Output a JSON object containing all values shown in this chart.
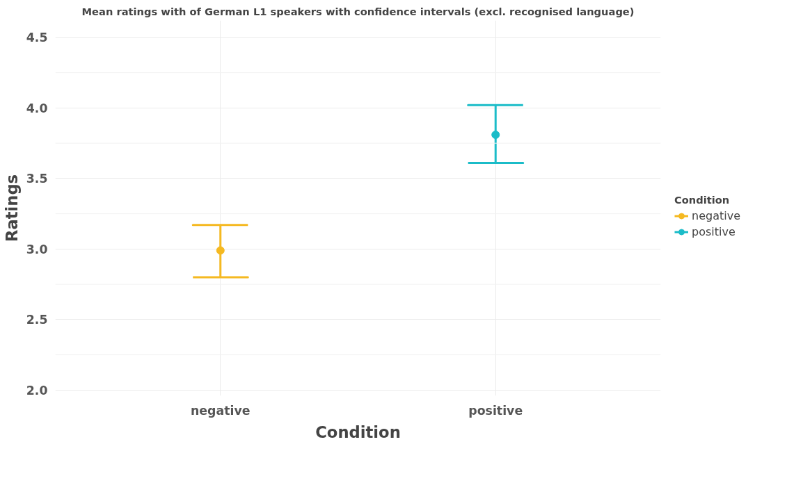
{
  "chart_data": {
    "type": "scatter",
    "title": "Mean ratings with of German L1 speakers with confidence intervals (excl. recognised language)",
    "xlabel": "Condition",
    "ylabel": "Ratings",
    "legend_title": "Condition",
    "categories": [
      "negative",
      "positive"
    ],
    "series": [
      {
        "name": "negative",
        "color": "#f5b921",
        "values": [
          2.99,
          null
        ],
        "errors": [
          [
            2.8,
            3.17
          ],
          null
        ]
      },
      {
        "name": "positive",
        "color": "#1bbcc8",
        "values": [
          null,
          3.81
        ],
        "errors": [
          null,
          [
            3.61,
            4.02
          ]
        ]
      }
    ],
    "ylim": [
      1.96,
      4.62
    ],
    "yticks": [
      {
        "value": 2,
        "label": "2.0"
      },
      {
        "value": 2.5,
        "label": "2.5"
      },
      {
        "value": 3,
        "label": "3.0"
      },
      {
        "value": 3.5,
        "label": "3.5"
      },
      {
        "value": 4,
        "label": "4.0"
      },
      {
        "value": 4.5,
        "label": "4.5"
      }
    ],
    "grid": true,
    "legend": "right",
    "marker": "circle"
  }
}
